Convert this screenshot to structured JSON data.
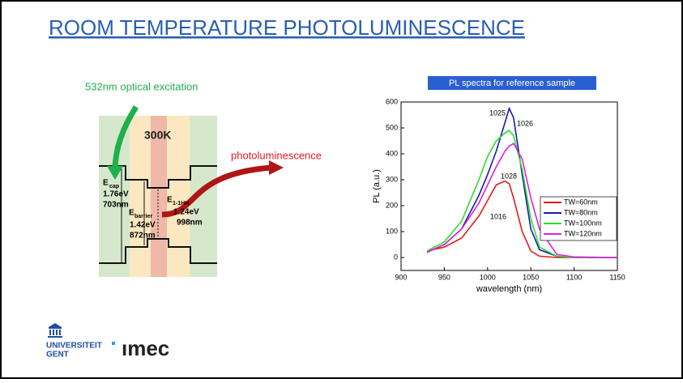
{
  "title": "ROOM TEMPERATURE PHOTOLUMINESCENCE",
  "diagram": {
    "excitation": "532nm optical excitation",
    "temperature": "300K",
    "emission": "photoluminescence",
    "cap": {
      "symbol": "E",
      "sub": "cap",
      "energy": "1.76eV",
      "wavelength": "703nm"
    },
    "barrier": {
      "symbol": "E",
      "sub": "barrier",
      "energy": "1.42eV",
      "wavelength": "872nm"
    },
    "well": {
      "symbol": "E",
      "sub": "1-1HH",
      "energy": "1.24eV",
      "wavelength": "998nm"
    }
  },
  "chart_data": {
    "type": "line",
    "title": "PL spectra for reference sample",
    "x_label": "wavelength (nm)",
    "y_label": "PL (a.u.)",
    "x": [
      930,
      950,
      970,
      990,
      1000,
      1010,
      1020,
      1025,
      1030,
      1040,
      1050,
      1060,
      1080,
      1100,
      1150
    ],
    "series": [
      {
        "name": "TW=60nm",
        "color": "#e8191c",
        "values": [
          25,
          40,
          75,
          160,
          220,
          280,
          295,
          285,
          230,
          100,
          25,
          5,
          0,
          0,
          0
        ]
      },
      {
        "name": "TW=80nm",
        "color": "#1a1aa8",
        "values": [
          20,
          50,
          110,
          240,
          320,
          410,
          520,
          575,
          540,
          320,
          110,
          30,
          5,
          0,
          0
        ]
      },
      {
        "name": "TW=100nm",
        "color": "#2be02b",
        "values": [
          25,
          60,
          140,
          300,
          390,
          450,
          480,
          490,
          470,
          340,
          150,
          40,
          5,
          0,
          0
        ]
      },
      {
        "name": "TW=120nm",
        "color": "#e020e0",
        "values": [
          20,
          50,
          110,
          210,
          280,
          350,
          410,
          430,
          440,
          380,
          230,
          110,
          12,
          2,
          0
        ]
      }
    ],
    "annotations": [
      "1025",
      "1026",
      "1028",
      "1016"
    ],
    "xlim": [
      900,
      1150
    ],
    "xticks": [
      900,
      950,
      1000,
      1050,
      1100,
      1150
    ],
    "ylim": [
      -50,
      600
    ],
    "yticks": [
      0,
      100,
      200,
      300,
      400,
      500,
      600
    ],
    "legend": "right"
  },
  "footer": {
    "university_line1": "UNIVERSITEIT",
    "university_line2": "GENT",
    "institute": "ımec"
  }
}
